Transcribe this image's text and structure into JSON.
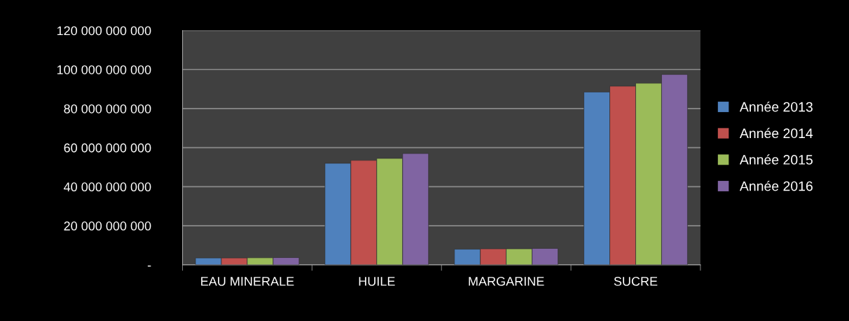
{
  "chart_data": {
    "type": "bar",
    "categories": [
      "EAU MINERALE",
      "HUILE",
      "MARGARINE",
      "SUCRE"
    ],
    "series": [
      {
        "name": "Année 2013",
        "color": "#4f81bd",
        "values": [
          3500000000,
          52000000000,
          8000000000,
          88500000000
        ]
      },
      {
        "name": "Année 2014",
        "color": "#c0504d",
        "values": [
          3500000000,
          53500000000,
          8200000000,
          91500000000
        ]
      },
      {
        "name": "Année 2015",
        "color": "#9bbb59",
        "values": [
          3600000000,
          54500000000,
          8200000000,
          93000000000
        ]
      },
      {
        "name": "Année 2016",
        "color": "#8064a2",
        "values": [
          3700000000,
          57000000000,
          8400000000,
          97500000000
        ]
      }
    ],
    "ylim": [
      0,
      120000000000
    ],
    "yticks": [
      {
        "value": 0,
        "label": "-"
      },
      {
        "value": 20000000000,
        "label": "20 000 000 000"
      },
      {
        "value": 40000000000,
        "label": "40 000 000 000"
      },
      {
        "value": 60000000000,
        "label": "60 000 000 000"
      },
      {
        "value": 80000000000,
        "label": "80 000 000 000"
      },
      {
        "value": 100000000000,
        "label": "100 000 000 000"
      },
      {
        "value": 120000000000,
        "label": "120 000 000 000"
      }
    ],
    "grid": "y",
    "legend": "right"
  }
}
